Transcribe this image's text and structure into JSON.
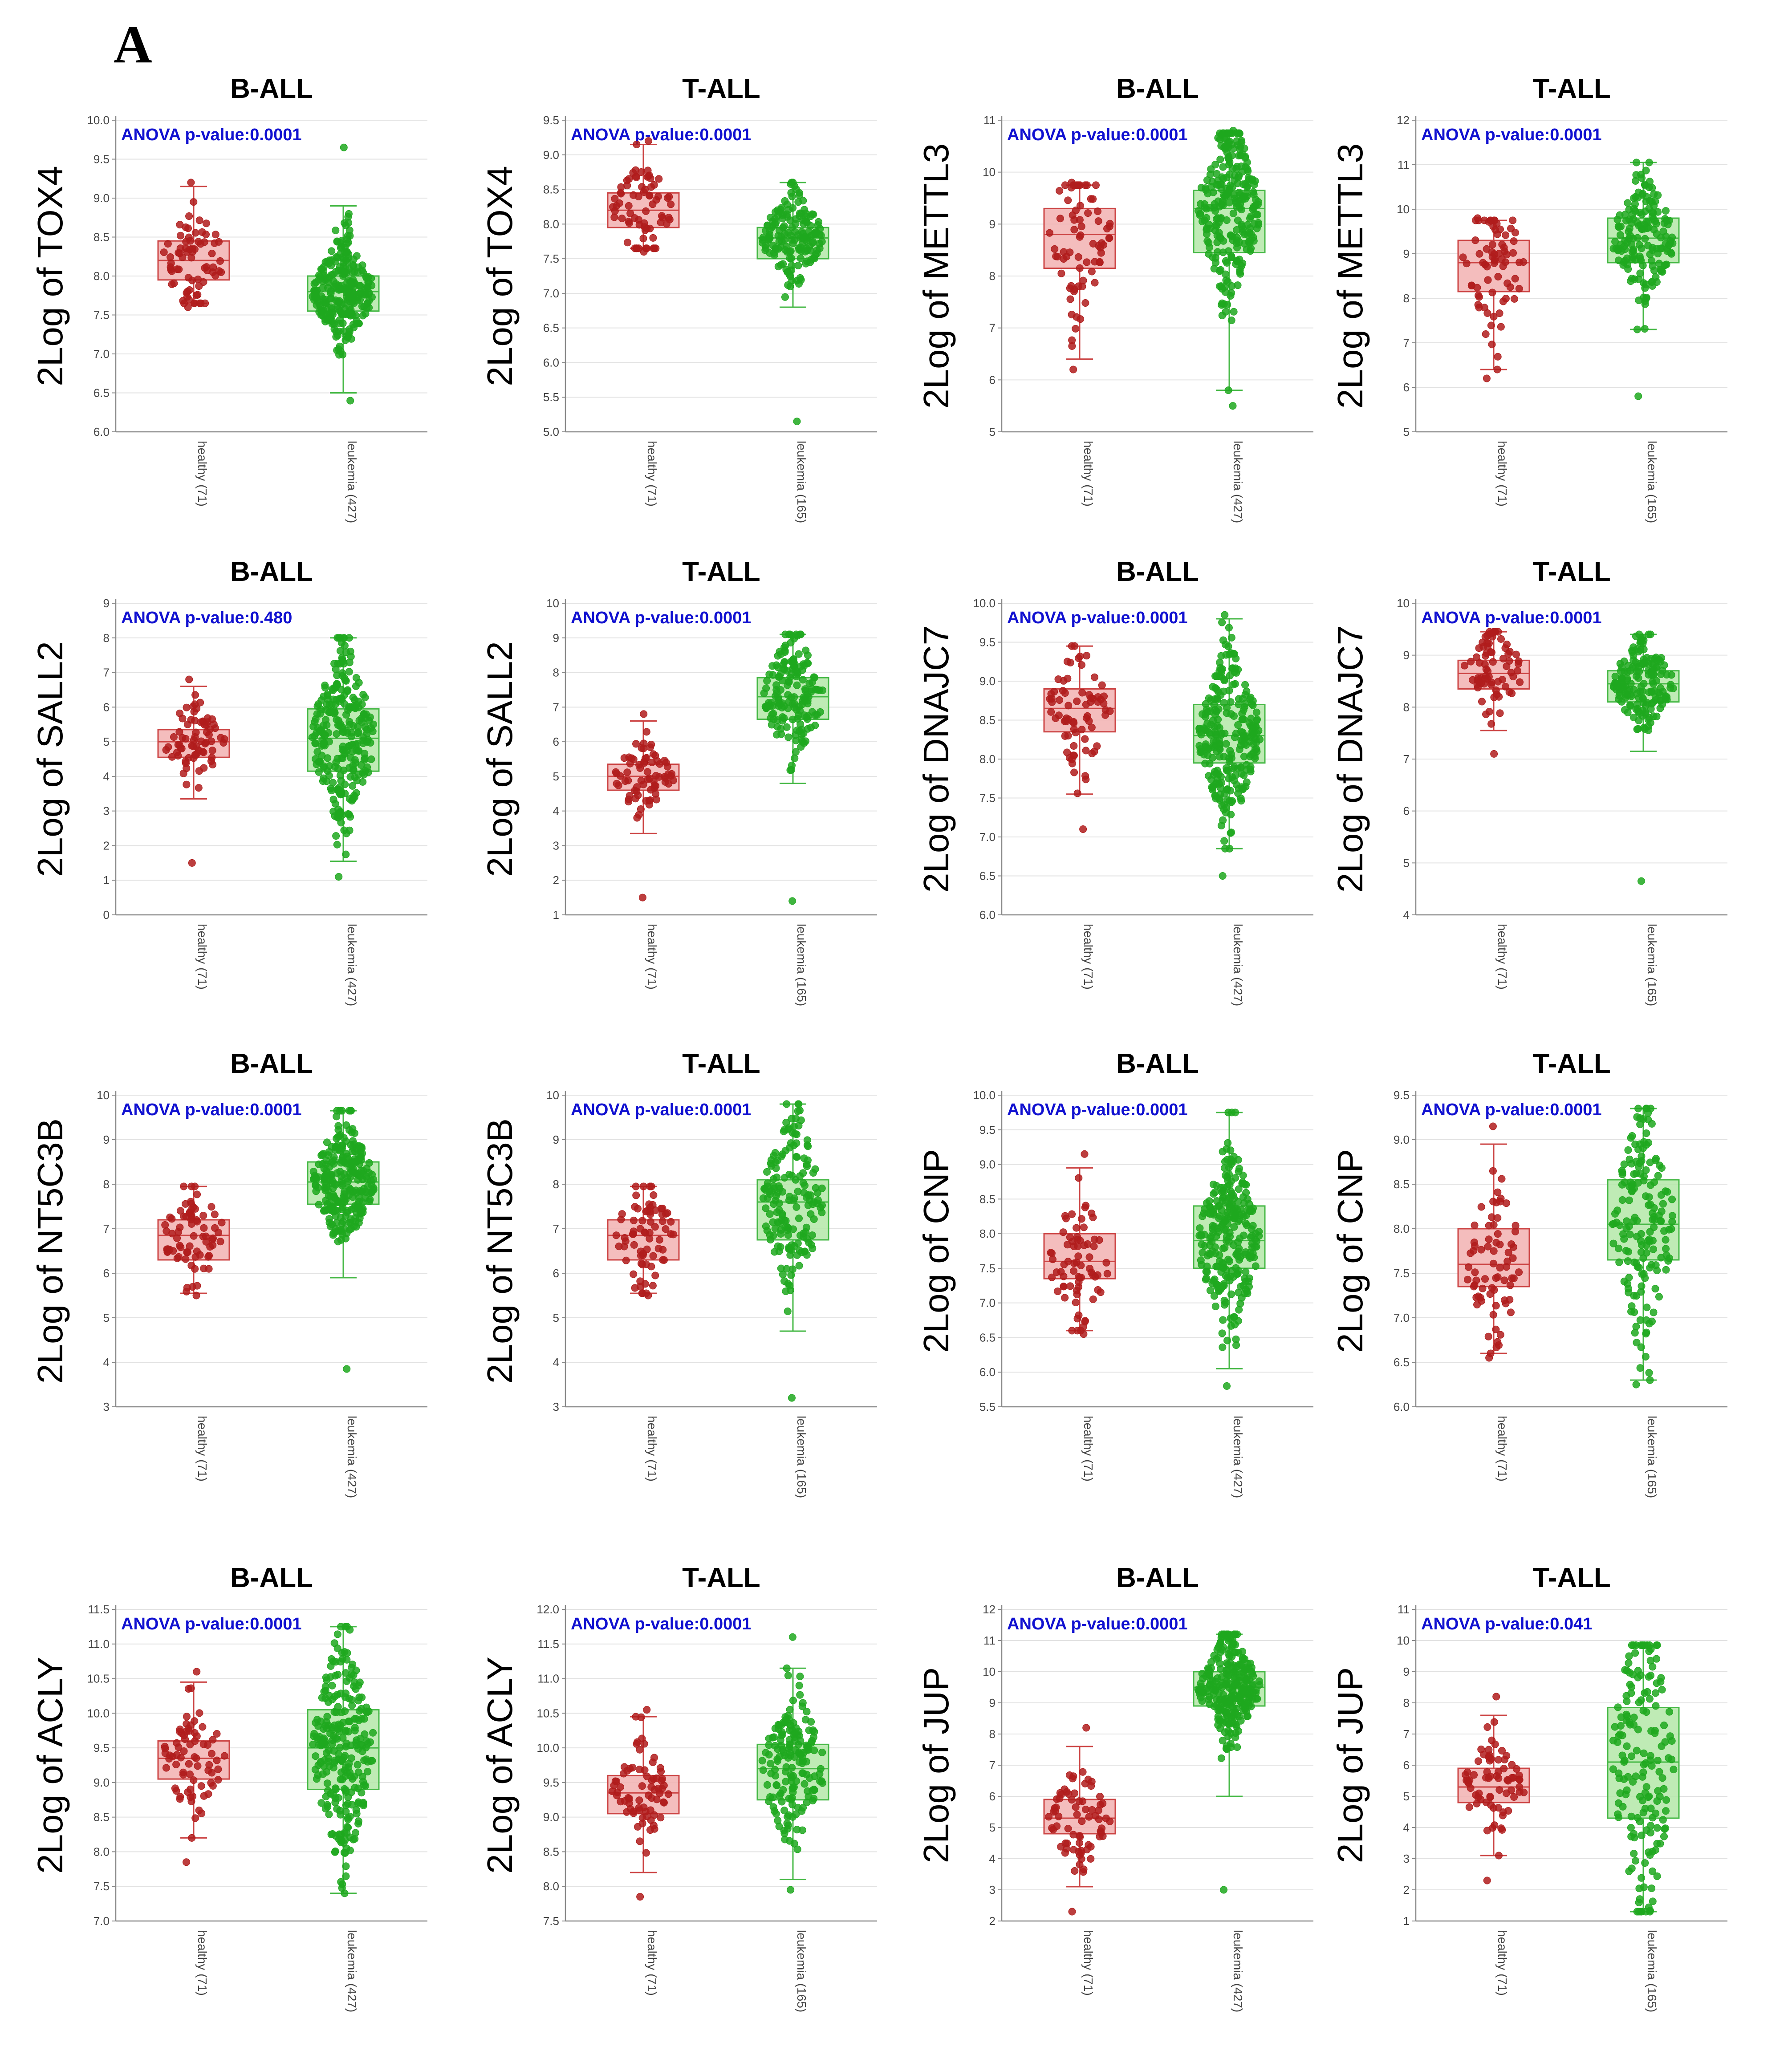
{
  "figure": {
    "panel_letter": "A"
  },
  "colors": {
    "healthy_dot": "#b01c1c",
    "healthy_box": "#f2b1b1",
    "healthy_box_stroke": "#cc4444",
    "leukemia_dot": "#1fa81f",
    "leukemia_box": "#b4e7a8",
    "leukemia_box_stroke": "#45b845",
    "anova_text": "#1010d0",
    "grid": "#e2e2e2"
  },
  "chart_data": [
    {
      "type": "box",
      "title": "B-ALL",
      "ylabel": "2Log of TOX4",
      "anova": "ANOVA p-value:0.0001",
      "ylim": [
        6.0,
        10.0
      ],
      "ticks": [
        "6.0",
        "6.5",
        "7.0",
        "7.5",
        "8.0",
        "8.5",
        "9.0",
        "9.5",
        "10.0"
      ],
      "categories": [
        "healthy (71)",
        "leukemia (427)"
      ],
      "groups": [
        {
          "name": "healthy (71)",
          "n": 71,
          "q1": 7.95,
          "median": 8.2,
          "q3": 8.45,
          "wmin": 7.65,
          "wmax": 9.15,
          "min": 7.6,
          "max": 9.2
        },
        {
          "name": "leukemia (427)",
          "n": 427,
          "q1": 7.55,
          "median": 7.8,
          "q3": 8.0,
          "wmin": 6.5,
          "wmax": 8.9,
          "min": 6.4,
          "max": 9.65
        }
      ]
    },
    {
      "type": "box",
      "title": "T-ALL",
      "ylabel": "2Log of TOX4",
      "anova": "ANOVA p-value:0.0001",
      "ylim": [
        5.0,
        9.5
      ],
      "ticks": [
        "5.0",
        "5.5",
        "6.0",
        "6.5",
        "7.0",
        "7.5",
        "8.0",
        "8.5",
        "9.0",
        "9.5"
      ],
      "categories": [
        "healthy (71)",
        "leukemia (165)"
      ],
      "groups": [
        {
          "name": "healthy (71)",
          "n": 71,
          "q1": 7.95,
          "median": 8.2,
          "q3": 8.45,
          "wmin": 7.65,
          "wmax": 9.15,
          "min": 7.6,
          "max": 9.2
        },
        {
          "name": "leukemia (165)",
          "n": 165,
          "q1": 7.5,
          "median": 7.8,
          "q3": 7.95,
          "wmin": 6.8,
          "wmax": 8.6,
          "min": 5.15,
          "max": 8.6
        }
      ]
    },
    {
      "type": "box",
      "title": "B-ALL",
      "ylabel": "2Log of METTL3",
      "anova": "ANOVA p-value:0.0001",
      "ylim": [
        5,
        11
      ],
      "ticks": [
        "5",
        "6",
        "7",
        "8",
        "9",
        "10",
        "11"
      ],
      "categories": [
        "healthy (71)",
        "leukemia (427)"
      ],
      "groups": [
        {
          "name": "healthy (71)",
          "n": 71,
          "q1": 8.15,
          "median": 8.8,
          "q3": 9.3,
          "wmin": 6.4,
          "wmax": 9.75,
          "min": 6.2,
          "max": 9.8
        },
        {
          "name": "leukemia (427)",
          "n": 427,
          "q1": 8.45,
          "median": 9.3,
          "q3": 9.65,
          "wmin": 5.8,
          "wmax": 10.75,
          "min": 5.5,
          "max": 10.8
        }
      ]
    },
    {
      "type": "box",
      "title": "T-ALL",
      "ylabel": "2Log of METTL3",
      "anova": "ANOVA p-value:0.0001",
      "ylim": [
        5,
        12
      ],
      "ticks": [
        "5",
        "6",
        "7",
        "8",
        "9",
        "10",
        "11",
        "12"
      ],
      "categories": [
        "healthy (71)",
        "leukemia (165)"
      ],
      "groups": [
        {
          "name": "healthy (71)",
          "n": 71,
          "q1": 8.15,
          "median": 8.8,
          "q3": 9.3,
          "wmin": 6.4,
          "wmax": 9.75,
          "min": 6.2,
          "max": 9.8
        },
        {
          "name": "leukemia (165)",
          "n": 165,
          "q1": 8.8,
          "median": 9.35,
          "q3": 9.8,
          "wmin": 7.3,
          "wmax": 11.05,
          "min": 5.8,
          "max": 11.05
        }
      ]
    },
    {
      "type": "box",
      "title": "B-ALL",
      "ylabel": "2Log of SALL2",
      "anova": "ANOVA p-value:0.480",
      "ylim": [
        0,
        9
      ],
      "ticks": [
        "0",
        "1",
        "2",
        "3",
        "4",
        "5",
        "6",
        "7",
        "8",
        "9"
      ],
      "categories": [
        "healthy (71)",
        "leukemia (427)"
      ],
      "groups": [
        {
          "name": "healthy (71)",
          "n": 71,
          "q1": 4.55,
          "median": 5.0,
          "q3": 5.35,
          "wmin": 3.35,
          "wmax": 6.6,
          "min": 1.5,
          "max": 6.8
        },
        {
          "name": "leukemia (427)",
          "n": 427,
          "q1": 4.15,
          "median": 5.1,
          "q3": 5.95,
          "wmin": 1.55,
          "wmax": 8.0,
          "min": 1.1,
          "max": 8.0
        }
      ]
    },
    {
      "type": "box",
      "title": "T-ALL",
      "ylabel": "2Log of SALL2",
      "anova": "ANOVA p-value:0.0001",
      "ylim": [
        1,
        10
      ],
      "ticks": [
        "1",
        "2",
        "3",
        "4",
        "5",
        "6",
        "7",
        "8",
        "9",
        "10"
      ],
      "categories": [
        "healthy (71)",
        "leukemia (165)"
      ],
      "groups": [
        {
          "name": "healthy (71)",
          "n": 71,
          "q1": 4.6,
          "median": 5.0,
          "q3": 5.35,
          "wmin": 3.35,
          "wmax": 6.6,
          "min": 1.5,
          "max": 6.8
        },
        {
          "name": "leukemia (165)",
          "n": 165,
          "q1": 6.65,
          "median": 7.3,
          "q3": 7.85,
          "wmin": 4.8,
          "wmax": 9.1,
          "min": 1.4,
          "max": 9.1
        }
      ]
    },
    {
      "type": "box",
      "title": "B-ALL",
      "ylabel": "2Log of DNAJC7",
      "anova": "ANOVA p-value:0.0001",
      "ylim": [
        6.0,
        10.0
      ],
      "ticks": [
        "6.0",
        "6.5",
        "7.0",
        "7.5",
        "8.0",
        "8.5",
        "9.0",
        "9.5",
        "10.0"
      ],
      "categories": [
        "healthy (71)",
        "leukemia (427)"
      ],
      "groups": [
        {
          "name": "healthy (71)",
          "n": 71,
          "q1": 8.35,
          "median": 8.65,
          "q3": 8.9,
          "wmin": 7.55,
          "wmax": 9.45,
          "min": 7.1,
          "max": 9.45
        },
        {
          "name": "leukemia (427)",
          "n": 427,
          "q1": 7.95,
          "median": 8.3,
          "q3": 8.7,
          "wmin": 6.85,
          "wmax": 9.8,
          "min": 6.5,
          "max": 9.85
        }
      ]
    },
    {
      "type": "box",
      "title": "T-ALL",
      "ylabel": "2Log of DNAJC7",
      "anova": "ANOVA p-value:0.0001",
      "ylim": [
        4,
        10
      ],
      "ticks": [
        "4",
        "5",
        "6",
        "7",
        "8",
        "9",
        "10"
      ],
      "categories": [
        "healthy (71)",
        "leukemia (165)"
      ],
      "groups": [
        {
          "name": "healthy (71)",
          "n": 71,
          "q1": 8.35,
          "median": 8.65,
          "q3": 8.9,
          "wmin": 7.55,
          "wmax": 9.45,
          "min": 7.1,
          "max": 9.45
        },
        {
          "name": "leukemia (165)",
          "n": 165,
          "q1": 8.1,
          "median": 8.45,
          "q3": 8.7,
          "wmin": 7.15,
          "wmax": 9.4,
          "min": 4.65,
          "max": 9.4
        }
      ]
    },
    {
      "type": "box",
      "title": "B-ALL",
      "ylabel": "2Log of NT5C3B",
      "anova": "ANOVA p-value:0.0001",
      "ylim": [
        3,
        10
      ],
      "ticks": [
        "3",
        "4",
        "5",
        "6",
        "7",
        "8",
        "9",
        "10"
      ],
      "categories": [
        "healthy (71)",
        "leukemia (427)"
      ],
      "groups": [
        {
          "name": "healthy (71)",
          "n": 71,
          "q1": 6.3,
          "median": 6.85,
          "q3": 7.2,
          "wmin": 5.55,
          "wmax": 7.95,
          "min": 5.5,
          "max": 7.95
        },
        {
          "name": "leukemia (427)",
          "n": 427,
          "q1": 7.55,
          "median": 8.05,
          "q3": 8.5,
          "wmin": 5.9,
          "wmax": 9.65,
          "min": 3.85,
          "max": 9.65
        }
      ]
    },
    {
      "type": "box",
      "title": "T-ALL",
      "ylabel": "2Log of NT5C3B",
      "anova": "ANOVA p-value:0.0001",
      "ylim": [
        3,
        10
      ],
      "ticks": [
        "3",
        "4",
        "5",
        "6",
        "7",
        "8",
        "9",
        "10"
      ],
      "categories": [
        "healthy (71)",
        "leukemia (165)"
      ],
      "groups": [
        {
          "name": "healthy (71)",
          "n": 71,
          "q1": 6.3,
          "median": 6.85,
          "q3": 7.2,
          "wmin": 5.55,
          "wmax": 7.95,
          "min": 5.5,
          "max": 7.95
        },
        {
          "name": "leukemia (165)",
          "n": 165,
          "q1": 6.75,
          "median": 7.6,
          "q3": 8.1,
          "wmin": 4.7,
          "wmax": 9.8,
          "min": 3.2,
          "max": 9.8
        }
      ]
    },
    {
      "type": "box",
      "title": "B-ALL",
      "ylabel": "2Log of CNP",
      "anova": "ANOVA p-value:0.0001",
      "ylim": [
        5.5,
        10.0
      ],
      "ticks": [
        "5.5",
        "6.0",
        "6.5",
        "7.0",
        "7.5",
        "8.0",
        "8.5",
        "9.0",
        "9.5",
        "10.0"
      ],
      "categories": [
        "healthy (71)",
        "leukemia (427)"
      ],
      "groups": [
        {
          "name": "healthy (71)",
          "n": 71,
          "q1": 7.35,
          "median": 7.6,
          "q3": 8.0,
          "wmin": 6.6,
          "wmax": 8.95,
          "min": 6.55,
          "max": 9.15
        },
        {
          "name": "leukemia (427)",
          "n": 427,
          "q1": 7.5,
          "median": 7.9,
          "q3": 8.4,
          "wmin": 6.05,
          "wmax": 9.75,
          "min": 5.8,
          "max": 9.75
        }
      ]
    },
    {
      "type": "box",
      "title": "T-ALL",
      "ylabel": "2Log of CNP",
      "anova": "ANOVA p-value:0.0001",
      "ylim": [
        6.0,
        9.5
      ],
      "ticks": [
        "6.0",
        "6.5",
        "7.0",
        "7.5",
        "8.0",
        "8.5",
        "9.0",
        "9.5"
      ],
      "categories": [
        "healthy (71)",
        "leukemia (165)"
      ],
      "groups": [
        {
          "name": "healthy (71)",
          "n": 71,
          "q1": 7.35,
          "median": 7.6,
          "q3": 8.0,
          "wmin": 6.6,
          "wmax": 8.95,
          "min": 6.55,
          "max": 9.15
        },
        {
          "name": "leukemia (165)",
          "n": 165,
          "q1": 7.65,
          "median": 8.05,
          "q3": 8.55,
          "wmin": 6.3,
          "wmax": 9.35,
          "min": 6.25,
          "max": 9.35
        }
      ]
    },
    {
      "type": "box",
      "title": "B-ALL",
      "ylabel": "2Log of ACLY",
      "anova": "ANOVA p-value:0.0001",
      "ylim": [
        7.0,
        11.5
      ],
      "ticks": [
        "7.0",
        "7.5",
        "8.0",
        "8.5",
        "9.0",
        "9.5",
        "10.0",
        "10.5",
        "11.0",
        "11.5"
      ],
      "categories": [
        "healthy (71)",
        "leukemia (427)"
      ],
      "groups": [
        {
          "name": "healthy (71)",
          "n": 71,
          "q1": 9.05,
          "median": 9.35,
          "q3": 9.6,
          "wmin": 8.2,
          "wmax": 10.45,
          "min": 7.85,
          "max": 10.6
        },
        {
          "name": "leukemia (427)",
          "n": 427,
          "q1": 8.9,
          "median": 9.5,
          "q3": 10.05,
          "wmin": 7.4,
          "wmax": 11.25,
          "min": 7.4,
          "max": 11.25
        }
      ]
    },
    {
      "type": "box",
      "title": "T-ALL",
      "ylabel": "2Log of ACLY",
      "anova": "ANOVA p-value:0.0001",
      "ylim": [
        7.5,
        12.0
      ],
      "ticks": [
        "7.5",
        "8.0",
        "8.5",
        "9.0",
        "9.5",
        "10.0",
        "10.5",
        "11.0",
        "11.5",
        "12.0"
      ],
      "categories": [
        "healthy (71)",
        "leukemia (165)"
      ],
      "groups": [
        {
          "name": "healthy (71)",
          "n": 71,
          "q1": 9.05,
          "median": 9.35,
          "q3": 9.6,
          "wmin": 8.2,
          "wmax": 10.45,
          "min": 7.85,
          "max": 10.55
        },
        {
          "name": "leukemia (165)",
          "n": 165,
          "q1": 9.25,
          "median": 9.7,
          "q3": 10.05,
          "wmin": 8.1,
          "wmax": 11.15,
          "min": 7.95,
          "max": 11.6
        }
      ]
    },
    {
      "type": "box",
      "title": "B-ALL",
      "ylabel": "2Log of JUP",
      "anova": "ANOVA p-value:0.0001",
      "ylim": [
        2,
        12
      ],
      "ticks": [
        "2",
        "3",
        "4",
        "5",
        "6",
        "7",
        "8",
        "9",
        "10",
        "11",
        "12"
      ],
      "categories": [
        "healthy (71)",
        "leukemia (427)"
      ],
      "groups": [
        {
          "name": "healthy (71)",
          "n": 71,
          "q1": 4.8,
          "median": 5.3,
          "q3": 5.9,
          "wmin": 3.1,
          "wmax": 7.6,
          "min": 2.3,
          "max": 8.2
        },
        {
          "name": "leukemia (427)",
          "n": 427,
          "q1": 8.9,
          "median": 9.5,
          "q3": 10.0,
          "wmin": 6.0,
          "wmax": 11.2,
          "min": 3.0,
          "max": 11.2
        }
      ]
    },
    {
      "type": "box",
      "title": "T-ALL",
      "ylabel": "2Log of JUP",
      "anova": "ANOVA p-value:0.041",
      "ylim": [
        1,
        11
      ],
      "ticks": [
        "1",
        "2",
        "3",
        "4",
        "5",
        "6",
        "7",
        "8",
        "9",
        "10",
        "11"
      ],
      "categories": [
        "healthy (71)",
        "leukemia (165)"
      ],
      "groups": [
        {
          "name": "healthy (71)",
          "n": 71,
          "q1": 4.8,
          "median": 5.3,
          "q3": 5.9,
          "wmin": 3.1,
          "wmax": 7.6,
          "min": 2.3,
          "max": 8.2
        },
        {
          "name": "leukemia (165)",
          "n": 165,
          "q1": 4.3,
          "median": 6.1,
          "q3": 7.85,
          "wmin": 1.3,
          "wmax": 9.85,
          "min": 1.3,
          "max": 9.85
        }
      ]
    }
  ]
}
